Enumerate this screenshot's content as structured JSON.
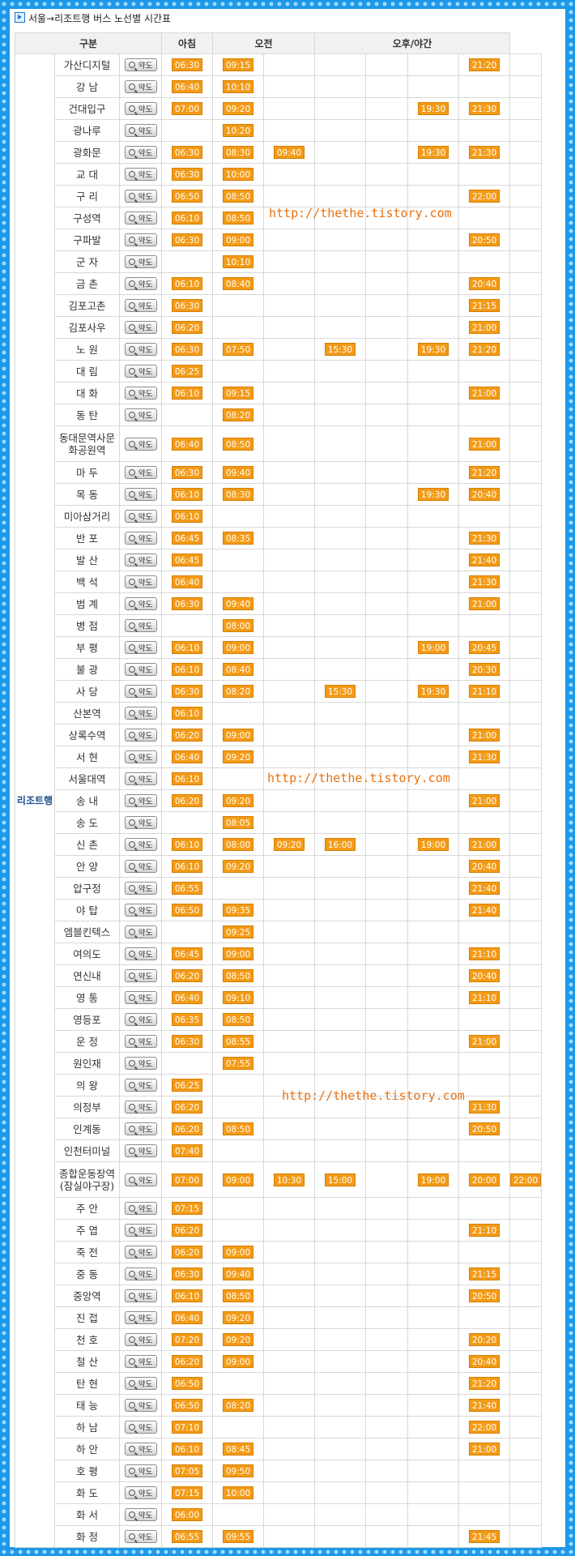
{
  "title": "서울→리조트행 버스 노선별 시간표",
  "headers": {
    "category": "구분",
    "morning": "아침",
    "am": "오전",
    "pm": "오후/야간"
  },
  "group_label": "리조트행",
  "map_button_label": "약도",
  "watermark": "http://thethe.tistory.com",
  "rows": [
    {
      "station": "가산디지털",
      "times": [
        "06:30",
        "09:15",
        "",
        "",
        "",
        "",
        "21:20",
        ""
      ]
    },
    {
      "station": "강 남",
      "times": [
        "06:40",
        "10:10",
        "",
        "",
        "",
        "",
        "",
        ""
      ]
    },
    {
      "station": "건대입구",
      "times": [
        "07:00",
        "09:20",
        "",
        "",
        "",
        "19:30",
        "21:30",
        ""
      ]
    },
    {
      "station": "광나루",
      "times": [
        "",
        "10:20",
        "",
        "",
        "",
        "",
        "",
        ""
      ]
    },
    {
      "station": "광화문",
      "times": [
        "06:30",
        "08:30",
        "09:40",
        "",
        "",
        "19:30",
        "21:30",
        ""
      ]
    },
    {
      "station": "교 대",
      "times": [
        "06:30",
        "10:00",
        "",
        "",
        "",
        "",
        "",
        ""
      ]
    },
    {
      "station": "구 리",
      "times": [
        "06:50",
        "08:50",
        "",
        "",
        "",
        "",
        "22:00",
        ""
      ]
    },
    {
      "station": "구성역",
      "times": [
        "06:10",
        "08:50",
        "",
        "",
        "",
        "",
        "",
        ""
      ]
    },
    {
      "station": "구파발",
      "times": [
        "06:30",
        "09:00",
        "",
        "",
        "",
        "",
        "20:50",
        ""
      ]
    },
    {
      "station": "군 자",
      "times": [
        "",
        "10:10",
        "",
        "",
        "",
        "",
        "",
        ""
      ]
    },
    {
      "station": "금 촌",
      "times": [
        "06:10",
        "08:40",
        "",
        "",
        "",
        "",
        "20:40",
        ""
      ]
    },
    {
      "station": "김포고촌",
      "times": [
        "06:30",
        "",
        "",
        "",
        "",
        "",
        "21:15",
        ""
      ]
    },
    {
      "station": "김포사우",
      "times": [
        "06:20",
        "",
        "",
        "",
        "",
        "",
        "21:00",
        ""
      ]
    },
    {
      "station": "노 원",
      "times": [
        "06:30",
        "07:50",
        "",
        "15:30",
        "",
        "19:30",
        "21:20",
        ""
      ]
    },
    {
      "station": "대 림",
      "times": [
        "06:25",
        "",
        "",
        "",
        "",
        "",
        "",
        ""
      ]
    },
    {
      "station": "대 화",
      "times": [
        "06:10",
        "09:15",
        "",
        "",
        "",
        "",
        "21:00",
        ""
      ]
    },
    {
      "station": "동 탄",
      "times": [
        "",
        "08:20",
        "",
        "",
        "",
        "",
        "",
        ""
      ]
    },
    {
      "station": "동대문역사문화공원역",
      "times": [
        "06:40",
        "08:50",
        "",
        "",
        "",
        "",
        "21:00",
        ""
      ]
    },
    {
      "station": "마 두",
      "times": [
        "06:30",
        "09:40",
        "",
        "",
        "",
        "",
        "21:20",
        ""
      ]
    },
    {
      "station": "목 동",
      "times": [
        "06:10",
        "08:30",
        "",
        "",
        "",
        "19:30",
        "20:40",
        ""
      ]
    },
    {
      "station": "미아삼거리",
      "times": [
        "06:10",
        "",
        "",
        "",
        "",
        "",
        "",
        ""
      ]
    },
    {
      "station": "반 포",
      "times": [
        "06:45",
        "08:35",
        "",
        "",
        "",
        "",
        "21:30",
        ""
      ]
    },
    {
      "station": "발 산",
      "times": [
        "06:45",
        "",
        "",
        "",
        "",
        "",
        "21:40",
        ""
      ]
    },
    {
      "station": "백 석",
      "times": [
        "06:40",
        "",
        "",
        "",
        "",
        "",
        "21:30",
        ""
      ]
    },
    {
      "station": "범 계",
      "times": [
        "06:30",
        "09:40",
        "",
        "",
        "",
        "",
        "21:00",
        ""
      ]
    },
    {
      "station": "병 점",
      "times": [
        "",
        "08:00",
        "",
        "",
        "",
        "",
        "",
        ""
      ]
    },
    {
      "station": "부 평",
      "times": [
        "06:10",
        "09:00",
        "",
        "",
        "",
        "19:00",
        "20:45",
        ""
      ]
    },
    {
      "station": "불 광",
      "times": [
        "06:10",
        "08:40",
        "",
        "",
        "",
        "",
        "20:30",
        ""
      ]
    },
    {
      "station": "사 당",
      "times": [
        "06:30",
        "08:20",
        "",
        "15:30",
        "",
        "19:30",
        "21:10",
        ""
      ]
    },
    {
      "station": "산본역",
      "times": [
        "06:10",
        "",
        "",
        "",
        "",
        "",
        "",
        ""
      ]
    },
    {
      "station": "상록수역",
      "times": [
        "06:20",
        "09:00",
        "",
        "",
        "",
        "",
        "21:00",
        ""
      ]
    },
    {
      "station": "서 현",
      "times": [
        "06:40",
        "09:20",
        "",
        "",
        "",
        "",
        "21:30",
        ""
      ]
    },
    {
      "station": "서울대역",
      "times": [
        "06:10",
        "",
        "",
        "",
        "",
        "",
        "",
        ""
      ]
    },
    {
      "station": "송 내",
      "times": [
        "06:20",
        "09:20",
        "",
        "",
        "",
        "",
        "21:00",
        ""
      ]
    },
    {
      "station": "송 도",
      "times": [
        "",
        "08:05",
        "",
        "",
        "",
        "",
        "",
        ""
      ]
    },
    {
      "station": "신 촌",
      "times": [
        "06:10",
        "08:00",
        "09:20",
        "16:00",
        "",
        "19:00",
        "21:00",
        ""
      ]
    },
    {
      "station": "안 양",
      "times": [
        "06:10",
        "09:20",
        "",
        "",
        "",
        "",
        "20:40",
        ""
      ]
    },
    {
      "station": "압구정",
      "times": [
        "06:55",
        "",
        "",
        "",
        "",
        "",
        "21:40",
        ""
      ]
    },
    {
      "station": "야 탑",
      "times": [
        "06:50",
        "09:35",
        "",
        "",
        "",
        "",
        "21:40",
        ""
      ]
    },
    {
      "station": "엠블킨텍스",
      "times": [
        "",
        "09:25",
        "",
        "",
        "",
        "",
        "",
        ""
      ]
    },
    {
      "station": "여의도",
      "times": [
        "06:45",
        "09:00",
        "",
        "",
        "",
        "",
        "21:10",
        ""
      ]
    },
    {
      "station": "연신내",
      "times": [
        "06:20",
        "08:50",
        "",
        "",
        "",
        "",
        "20:40",
        ""
      ]
    },
    {
      "station": "영 통",
      "times": [
        "06:40",
        "09:10",
        "",
        "",
        "",
        "",
        "21:10",
        ""
      ]
    },
    {
      "station": "영등포",
      "times": [
        "06:35",
        "08:50",
        "",
        "",
        "",
        "",
        "",
        ""
      ]
    },
    {
      "station": "운 정",
      "times": [
        "06:30",
        "08:55",
        "",
        "",
        "",
        "",
        "21:00",
        ""
      ]
    },
    {
      "station": "원인재",
      "times": [
        "",
        "07:55",
        "",
        "",
        "",
        "",
        "",
        ""
      ]
    },
    {
      "station": "의 왕",
      "times": [
        "06:25",
        "",
        "",
        "",
        "",
        "",
        "",
        ""
      ]
    },
    {
      "station": "의정부",
      "times": [
        "06:20",
        "",
        "",
        "",
        "",
        "",
        "21:30",
        ""
      ]
    },
    {
      "station": "인계동",
      "times": [
        "06:20",
        "08:50",
        "",
        "",
        "",
        "",
        "20:50",
        ""
      ]
    },
    {
      "station": "인천터미널",
      "times": [
        "07:40",
        "",
        "",
        "",
        "",
        "",
        "",
        ""
      ]
    },
    {
      "station": "종합운동장역(잠실야구장)",
      "times": [
        "07:00",
        "09:00",
        "10:30",
        "15:00",
        "",
        "19:00",
        "20:00",
        "22:00"
      ]
    },
    {
      "station": "주 안",
      "times": [
        "07:15",
        "",
        "",
        "",
        "",
        "",
        "",
        ""
      ]
    },
    {
      "station": "주 엽",
      "times": [
        "06:20",
        "",
        "",
        "",
        "",
        "",
        "21:10",
        ""
      ]
    },
    {
      "station": "죽 전",
      "times": [
        "06:20",
        "09:00",
        "",
        "",
        "",
        "",
        "",
        ""
      ]
    },
    {
      "station": "중 동",
      "times": [
        "06:30",
        "09:40",
        "",
        "",
        "",
        "",
        "21:15",
        ""
      ]
    },
    {
      "station": "중앙역",
      "times": [
        "06:10",
        "08:50",
        "",
        "",
        "",
        "",
        "20:50",
        ""
      ]
    },
    {
      "station": "진 접",
      "times": [
        "06:40",
        "09:20",
        "",
        "",
        "",
        "",
        "",
        ""
      ]
    },
    {
      "station": "천 호",
      "times": [
        "07:20",
        "09:20",
        "",
        "",
        "",
        "",
        "20:20",
        ""
      ]
    },
    {
      "station": "철 산",
      "times": [
        "06:20",
        "09:00",
        "",
        "",
        "",
        "",
        "20:40",
        ""
      ]
    },
    {
      "station": "탄 현",
      "times": [
        "06:50",
        "",
        "",
        "",
        "",
        "",
        "21:20",
        ""
      ]
    },
    {
      "station": "태 능",
      "times": [
        "06:50",
        "08:20",
        "",
        "",
        "",
        "",
        "21:40",
        ""
      ]
    },
    {
      "station": "하 남",
      "times": [
        "07:10",
        "",
        "",
        "",
        "",
        "",
        "22:00",
        ""
      ]
    },
    {
      "station": "하 안",
      "times": [
        "06:10",
        "08:45",
        "",
        "",
        "",
        "",
        "21:00",
        ""
      ]
    },
    {
      "station": "호 평",
      "times": [
        "07:05",
        "09:50",
        "",
        "",
        "",
        "",
        "",
        ""
      ]
    },
    {
      "station": "화 도",
      "times": [
        "07:15",
        "10:00",
        "",
        "",
        "",
        "",
        "",
        ""
      ]
    },
    {
      "station": "화 서",
      "times": [
        "06:00",
        "",
        "",
        "",
        "",
        "",
        "",
        ""
      ]
    },
    {
      "station": "화 정",
      "times": [
        "06:55",
        "09:55",
        "",
        "",
        "",
        "",
        "21:45",
        ""
      ]
    }
  ]
}
